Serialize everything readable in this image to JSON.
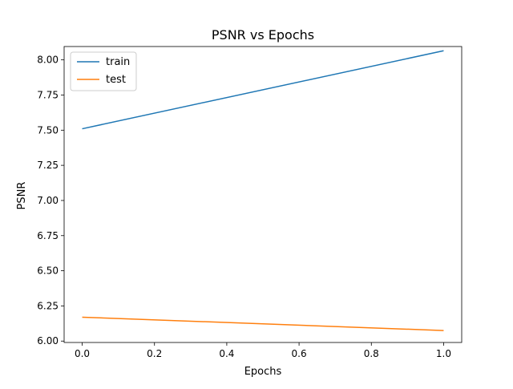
{
  "chart_data": {
    "type": "line",
    "title": "PSNR vs Epochs",
    "xlabel": "Epochs",
    "ylabel": "PSNR",
    "xlim": [
      -0.05,
      1.05
    ],
    "ylim": [
      5.99,
      8.095
    ],
    "xticks": [
      0.0,
      0.2,
      0.4,
      0.6,
      0.8,
      1.0
    ],
    "xtick_labels": [
      "0.0",
      "0.2",
      "0.4",
      "0.6",
      "0.8",
      "1.0"
    ],
    "yticks": [
      6.0,
      6.25,
      6.5,
      6.75,
      7.0,
      7.25,
      7.5,
      7.75,
      8.0
    ],
    "ytick_labels": [
      "6.00",
      "6.25",
      "6.50",
      "6.75",
      "7.00",
      "7.25",
      "7.50",
      "7.75",
      "8.00"
    ],
    "grid": false,
    "legend_position": "upper-left",
    "series": [
      {
        "name": "train",
        "color": "#1f77b4",
        "x": [
          0,
          1
        ],
        "y": [
          7.51,
          8.065
        ]
      },
      {
        "name": "test",
        "color": "#ff7f0e",
        "x": [
          0,
          1
        ],
        "y": [
          6.17,
          6.075
        ]
      }
    ]
  }
}
